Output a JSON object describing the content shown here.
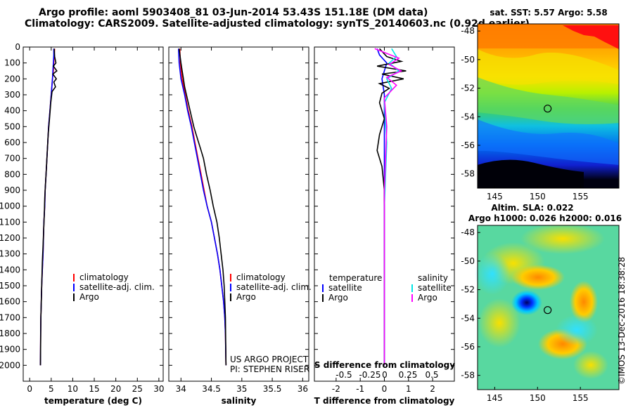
{
  "header": {
    "title_line1": "Argo profile: aoml 5903408_81 03-Jun-2014 53.43S 151.18E (DM data)",
    "title_line2": "Climatology: CARS2009. Satellite-adjusted climatology: synTS_20140603.nc (0.92d earlier)"
  },
  "colors": {
    "climatology": "#ff0000",
    "satellite": "#0000ff",
    "argo": "#000000",
    "salinity_satellite": "#00e5e5",
    "salinity_argo": "#ff00ff"
  },
  "chart_data": [
    {
      "type": "line",
      "name": "temperature-profile",
      "xlabel": "temperature (deg C)",
      "ylabel": "",
      "xlim": [
        -1.5,
        31
      ],
      "ylim": [
        2100,
        0
      ],
      "y_reversed": true,
      "xticks": [
        0,
        5,
        10,
        15,
        20,
        25,
        30
      ],
      "yticks": [
        0,
        100,
        200,
        300,
        400,
        500,
        600,
        700,
        800,
        900,
        1000,
        1100,
        1200,
        1300,
        1400,
        1500,
        1600,
        1700,
        1800,
        1900,
        2000
      ],
      "legend": {
        "placement": "middle-right",
        "entries": [
          "climatology",
          "satellite-adj. clim.",
          "Argo"
        ]
      },
      "series": [
        {
          "name": "climatology",
          "color": "#ff0000",
          "x": [
            5.8,
            5.7,
            5.6,
            5.5,
            5.3,
            5.0,
            4.7,
            4.4,
            4.2,
            4.0,
            3.8,
            3.6,
            3.5,
            3.3,
            3.2,
            3.1,
            2.95,
            2.8,
            2.7,
            2.6,
            2.55,
            2.5
          ],
          "y": [
            10,
            50,
            100,
            150,
            200,
            300,
            400,
            500,
            600,
            700,
            800,
            900,
            1000,
            1100,
            1200,
            1300,
            1400,
            1500,
            1600,
            1700,
            1800,
            2000
          ]
        },
        {
          "name": "satellite-adj. clim.",
          "color": "#0000ff",
          "x": [
            5.6,
            5.6,
            5.5,
            5.4,
            5.3,
            5.0,
            4.7,
            4.4,
            4.2,
            4.0,
            3.8,
            3.6,
            3.5,
            3.3,
            3.2,
            3.1,
            2.95,
            2.8,
            2.7,
            2.6,
            2.55,
            2.5
          ],
          "y": [
            10,
            50,
            100,
            150,
            200,
            300,
            400,
            500,
            600,
            700,
            800,
            900,
            1000,
            1100,
            1200,
            1300,
            1400,
            1500,
            1600,
            1700,
            1800,
            2000
          ]
        },
        {
          "name": "Argo",
          "color": "#000000",
          "x": [
            5.7,
            5.8,
            6.1,
            5.5,
            6.3,
            5.4,
            6.2,
            5.6,
            6.0,
            5.2,
            4.9,
            4.6,
            4.3,
            4.1,
            3.9,
            3.7,
            3.5,
            3.4,
            3.25,
            3.1,
            2.95,
            2.8,
            2.7,
            2.6,
            2.55,
            2.5
          ],
          "y": [
            10,
            60,
            100,
            120,
            150,
            170,
            200,
            220,
            250,
            280,
            350,
            450,
            550,
            650,
            750,
            850,
            950,
            1050,
            1150,
            1250,
            1350,
            1500,
            1600,
            1700,
            1850,
            2000
          ]
        }
      ]
    },
    {
      "type": "line",
      "name": "salinity-profile",
      "xlabel": "salinity",
      "ylabel": "",
      "xlim": [
        33.8,
        36.1
      ],
      "ylim": [
        2100,
        0
      ],
      "y_reversed": true,
      "xticks": [
        34,
        34.5,
        35,
        35.5,
        36
      ],
      "legend": {
        "placement": "middle-right",
        "entries": [
          "climatology",
          "satellite-adj. clim.",
          "Argo"
        ]
      },
      "annotations": [
        "US ARGO PROJECT",
        "PI: STEPHEN RISER"
      ],
      "series": [
        {
          "name": "climatology",
          "color": "#ff0000",
          "x": [
            33.98,
            33.99,
            34.02,
            34.07,
            34.12,
            34.18,
            34.23,
            34.28,
            34.33,
            34.38,
            34.43,
            34.5,
            34.55,
            34.6,
            34.64,
            34.67,
            34.7,
            34.72,
            34.73,
            34.735,
            34.74
          ],
          "y": [
            10,
            100,
            200,
            300,
            400,
            500,
            600,
            700,
            800,
            900,
            1000,
            1100,
            1200,
            1300,
            1400,
            1500,
            1600,
            1700,
            1800,
            1900,
            2000
          ]
        },
        {
          "name": "satellite-adj. clim.",
          "color": "#0000ff",
          "x": [
            33.96,
            33.97,
            34.0,
            34.06,
            34.11,
            34.17,
            34.22,
            34.27,
            34.32,
            34.37,
            34.43,
            34.5,
            34.55,
            34.6,
            34.64,
            34.67,
            34.7,
            34.72,
            34.73,
            34.735,
            34.74
          ],
          "y": [
            10,
            100,
            200,
            300,
            400,
            500,
            600,
            700,
            800,
            900,
            1000,
            1100,
            1200,
            1300,
            1400,
            1500,
            1600,
            1700,
            1800,
            1900,
            2000
          ]
        },
        {
          "name": "Argo",
          "color": "#000000",
          "x": [
            33.97,
            34.0,
            34.02,
            34.04,
            34.06,
            34.09,
            34.12,
            34.15,
            34.18,
            34.21,
            34.25,
            34.29,
            34.33,
            34.37,
            34.42,
            34.48,
            34.53,
            34.59,
            34.63,
            34.66,
            34.69,
            34.71,
            34.72,
            34.73,
            34.74
          ],
          "y": [
            10,
            100,
            150,
            200,
            250,
            300,
            350,
            400,
            450,
            500,
            550,
            600,
            650,
            700,
            800,
            900,
            1000,
            1100,
            1200,
            1300,
            1400,
            1500,
            1600,
            1700,
            2000
          ]
        }
      ]
    },
    {
      "type": "line",
      "name": "difference-profile",
      "xlabel": "T difference from climatology",
      "xlabel_secondary": "S difference from climatology",
      "ylabel": "",
      "xlim": [
        -2.9,
        2.9
      ],
      "ylim": [
        2100,
        0
      ],
      "y_reversed": true,
      "xticks": [
        -2,
        -1,
        0,
        1,
        2
      ],
      "xticks_secondary": [
        "-0.5",
        "-0.25",
        "0",
        "0.25",
        "0.5"
      ],
      "legend": {
        "placement": "middle",
        "temperature_title": "temperature",
        "salinity_title": "salinity",
        "entries": [
          "satellite",
          "Argo",
          "satellite",
          "Argo"
        ]
      },
      "series": [
        {
          "name": "satellite",
          "color": "#0000ff",
          "x": [
            -0.3,
            -0.2,
            0.1,
            0.0,
            -0.1,
            0.0,
            0.0,
            0.0,
            0.0,
            0.0
          ],
          "y": [
            10,
            50,
            100,
            150,
            200,
            300,
            500,
            800,
            1200,
            2000
          ]
        },
        {
          "name": "Argo",
          "color": "#000000",
          "x": [
            -0.2,
            0.1,
            0.7,
            -0.3,
            0.9,
            -0.1,
            0.8,
            -0.2,
            0.2,
            -0.1,
            -0.2,
            0.0,
            -0.2,
            -0.3,
            -0.1,
            0.0,
            0.0,
            0.0,
            0.0,
            0.0
          ],
          "y": [
            10,
            60,
            90,
            120,
            150,
            170,
            200,
            230,
            260,
            290,
            350,
            450,
            550,
            650,
            750,
            900,
            1100,
            1400,
            1700,
            2000
          ]
        },
        {
          "name": "satellite",
          "color": "#00e5e5",
          "x": [
            0.3,
            0.5,
            0.2,
            0.6,
            0.1,
            0.3,
            0.0,
            0.1,
            0.0,
            0.0,
            0.0
          ],
          "y": [
            10,
            60,
            100,
            150,
            200,
            260,
            350,
            600,
            1000,
            1500,
            2000
          ]
        },
        {
          "name": "Argo",
          "color": "#ff00ff",
          "x": [
            -0.4,
            0.6,
            0.2,
            0.7,
            0.1,
            0.5,
            0.0,
            0.1,
            0.0,
            0.0,
            0.0
          ],
          "y": [
            10,
            70,
            110,
            150,
            190,
            240,
            320,
            500,
            900,
            1400,
            2000
          ]
        }
      ]
    },
    {
      "type": "heatmap",
      "name": "sst-map",
      "title": "sat. SST: 5.57 Argo: 5.58",
      "xticks": [
        145,
        150,
        155
      ],
      "yticks": [
        -48,
        -50,
        -52,
        -54,
        -56,
        -58
      ],
      "xlim": [
        143,
        159.5
      ],
      "ylim": [
        -59,
        -47.5
      ],
      "marker": {
        "lon": 151.18,
        "lat": -53.43
      }
    },
    {
      "type": "heatmap",
      "name": "sla-map",
      "title_line1": "Altim. SLA: 0.022",
      "title_line2": "Argo h1000: 0.026 h2000: 0.016",
      "xticks": [
        145,
        150,
        155
      ],
      "yticks": [
        -48,
        -50,
        -52,
        -54,
        -56,
        -58
      ],
      "xlim": [
        143,
        159.5
      ],
      "ylim": [
        -59,
        -47.5
      ],
      "marker": {
        "lon": 151.18,
        "lat": -53.43
      },
      "footer": "©IMOS 13-Dec-2016 18:38:28"
    }
  ]
}
